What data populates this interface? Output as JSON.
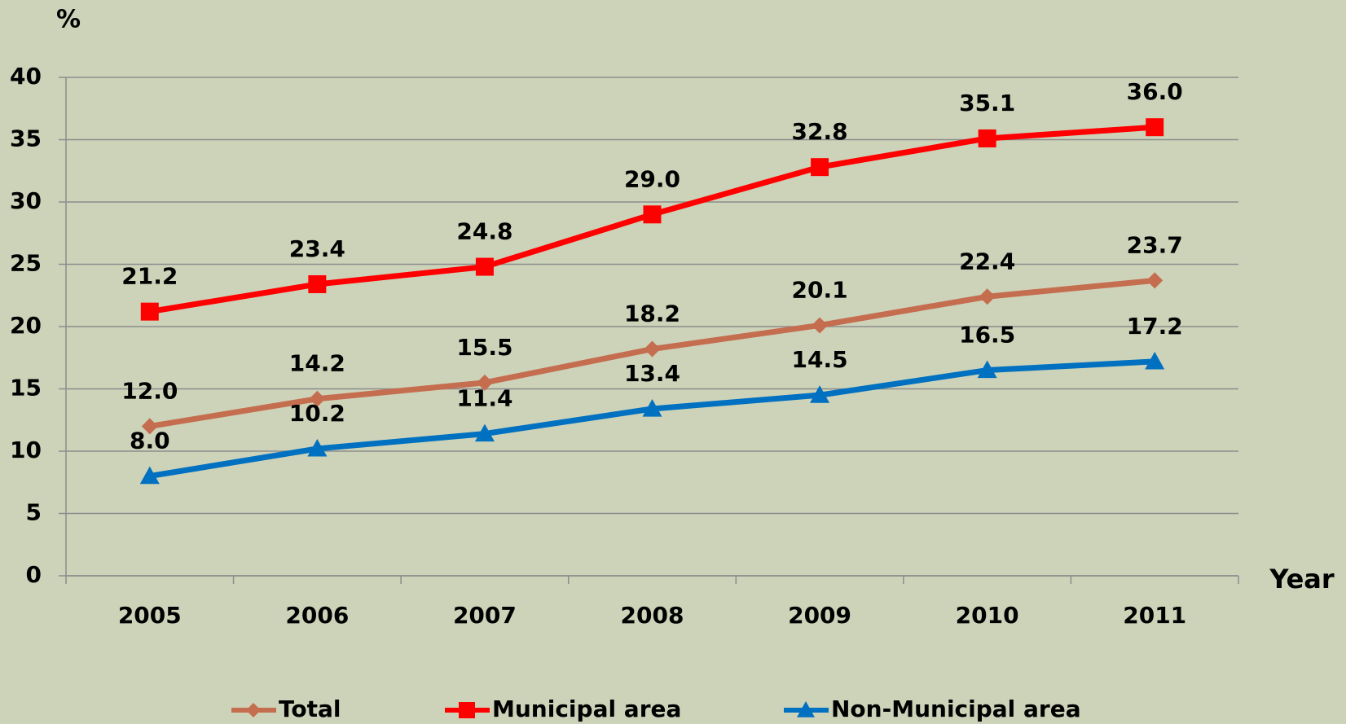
{
  "chart_data": {
    "type": "line",
    "y_label": "%",
    "x_label": "Year",
    "categories": [
      "2005",
      "2006",
      "2007",
      "2008",
      "2009",
      "2010",
      "2011"
    ],
    "series": [
      {
        "name": "Total",
        "color": "#c56d4f",
        "marker": "diamond",
        "values": [
          12.0,
          14.2,
          15.5,
          18.2,
          20.1,
          22.4,
          23.7
        ],
        "value_labels": [
          "12.0",
          "14.2",
          "15.5",
          "18.2",
          "20.1",
          "22.4",
          "23.7"
        ]
      },
      {
        "name": "Municipal area",
        "color": "#ff0000",
        "marker": "square",
        "values": [
          21.2,
          23.4,
          24.8,
          29.0,
          32.8,
          35.1,
          36.0
        ],
        "value_labels": [
          "21.2",
          "23.4",
          "24.8",
          "29.0",
          "32.8",
          "35.1",
          "36.0"
        ]
      },
      {
        "name": "Non-Municipal area",
        "color": "#0070c0",
        "marker": "triangle",
        "values": [
          8.0,
          10.2,
          11.4,
          13.4,
          14.5,
          16.5,
          17.2
        ],
        "value_labels": [
          "8.0",
          "10.2",
          "11.4",
          "13.4",
          "14.5",
          "16.5",
          "17.2"
        ]
      }
    ],
    "ylim": [
      0,
      40
    ],
    "yticks": [
      0,
      5,
      10,
      15,
      20,
      25,
      30,
      35,
      40
    ],
    "grid": true,
    "legend": "bottom"
  }
}
